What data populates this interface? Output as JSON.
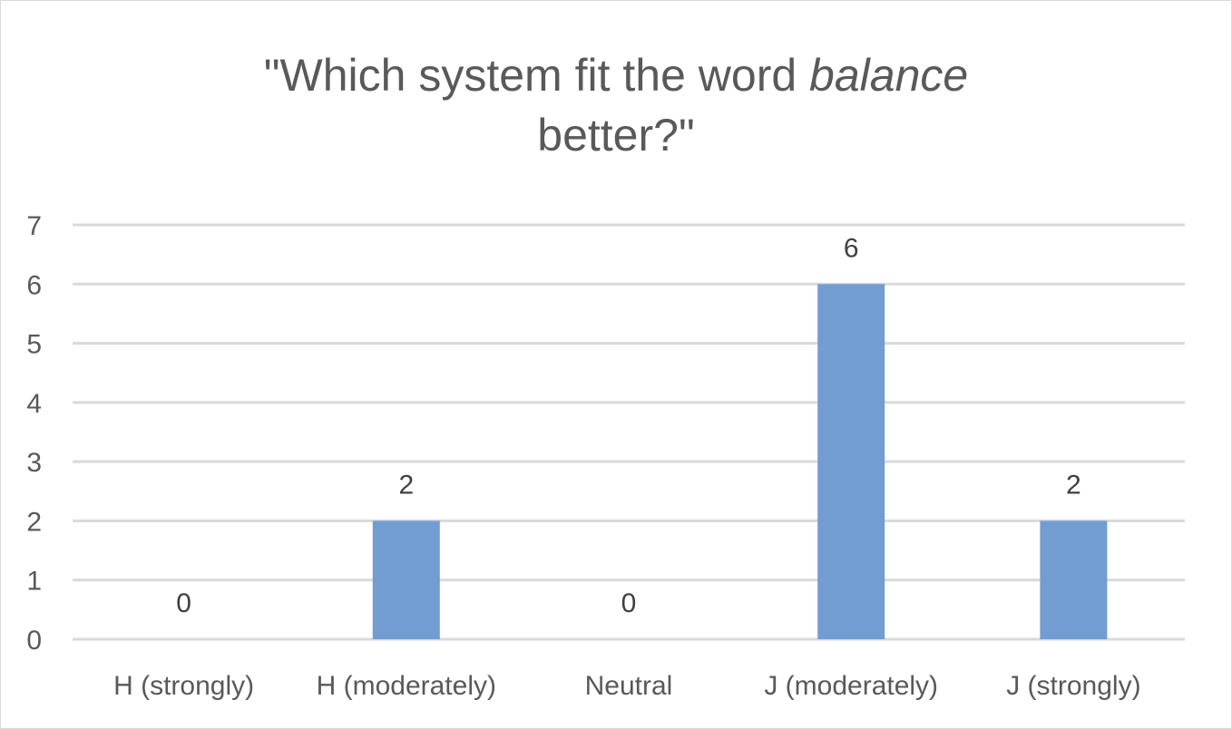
{
  "chart_data": {
    "type": "bar",
    "title": {
      "line1_prefix": "\"Which system fit the word ",
      "line1_italic": "balance",
      "line2": "better?\""
    },
    "categories": [
      "H (strongly)",
      "H (moderately)",
      "Neutral",
      "J (moderately)",
      "J (strongly)"
    ],
    "series": [
      {
        "values": [
          0,
          2,
          0,
          6,
          2
        ]
      }
    ],
    "data_labels": [
      "0",
      "2",
      "0",
      "6",
      "2"
    ],
    "y_ticks": [
      "0",
      "1",
      "2",
      "3",
      "4",
      "5",
      "6",
      "7"
    ],
    "ylim": [
      0,
      7
    ],
    "xlabel": "",
    "ylabel": "",
    "grid": true,
    "legend": "none",
    "colors": {
      "bar": "#729dd3",
      "grid": "#d9d9d9",
      "text": "#595959"
    }
  }
}
